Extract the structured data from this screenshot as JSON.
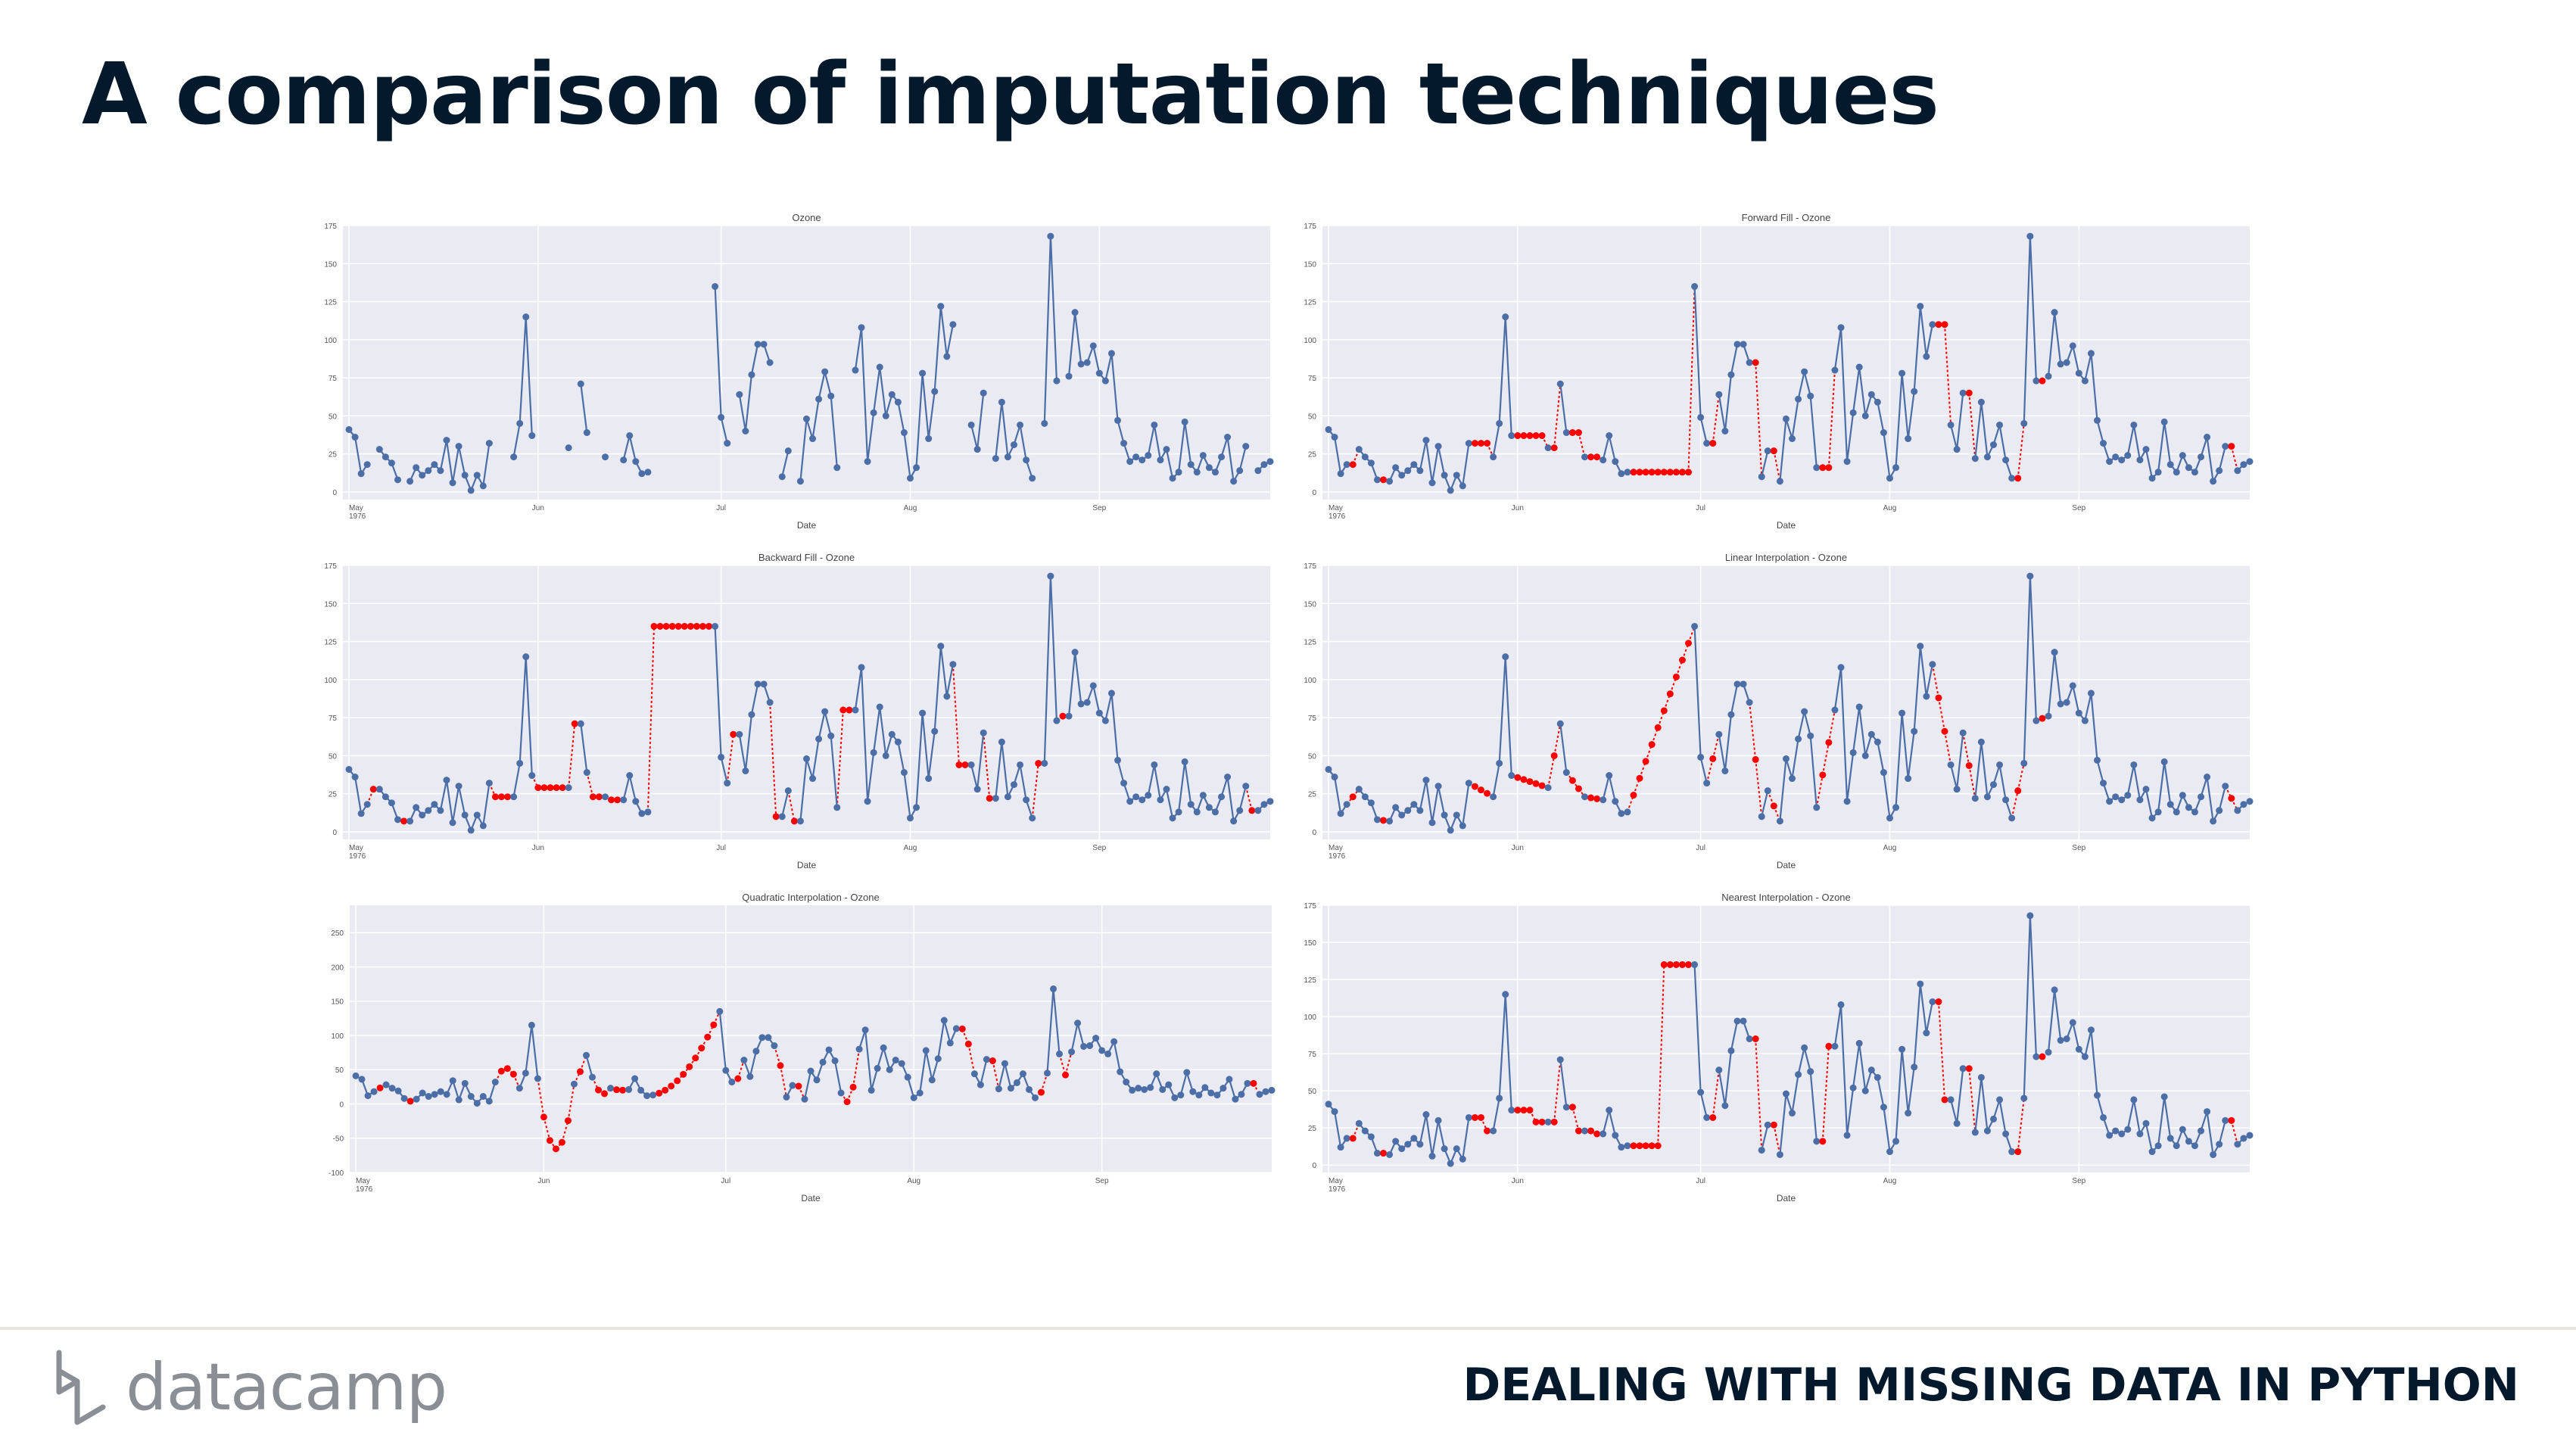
{
  "slide": {
    "title": "A comparison of imputation techniques",
    "course": "DEALING WITH MISSING DATA IN PYTHON",
    "brand": "datacamp"
  },
  "colors": {
    "background": "#ffffff",
    "title": "#05192d",
    "plot_bg": "#eaeaf2",
    "grid": "#ffffff",
    "observed": "#4c6ea6",
    "imputed": "#ff0000",
    "brand_gray": "#8a8f96"
  },
  "chart_data": [
    {
      "type": "line",
      "title": "Ozone",
      "xlabel": "Date",
      "ylabel": "",
      "xlim": [
        "1976-05-01",
        "1976-09-30"
      ],
      "ylim": [
        -5,
        175
      ],
      "yticks": [
        0,
        25,
        50,
        75,
        100,
        125,
        150,
        175
      ],
      "xticks": [
        "May\n1976",
        "Jun",
        "Jul",
        "Aug",
        "Sep"
      ],
      "grid": true,
      "imputed_points": false,
      "series": [
        {
          "values": [
            41,
            36,
            12,
            18,
            null,
            28,
            23,
            19,
            8,
            null,
            7,
            16,
            11,
            14,
            18,
            14,
            34,
            6,
            30,
            11,
            1,
            11,
            4,
            32,
            null,
            null,
            null,
            23,
            45,
            115,
            37,
            null,
            null,
            null,
            null,
            null,
            29,
            null,
            71,
            39,
            null,
            null,
            23,
            null,
            null,
            21,
            37,
            20,
            12,
            13,
            null,
            null,
            null,
            null,
            null,
            null,
            null,
            null,
            null,
            null,
            135,
            49,
            32,
            null,
            64,
            40,
            77,
            97,
            97,
            85,
            null,
            10,
            27,
            null,
            7,
            48,
            35,
            61,
            79,
            63,
            16,
            null,
            null,
            80,
            108,
            20,
            52,
            82,
            50,
            64,
            59,
            39,
            9,
            16,
            78,
            35,
            66,
            122,
            89,
            110,
            null,
            null,
            44,
            28,
            65,
            null,
            22,
            59,
            23,
            31,
            44,
            21,
            9,
            null,
            45,
            168,
            73,
            null,
            76,
            118,
            84,
            85,
            96,
            78,
            73,
            91,
            47,
            32,
            20,
            23,
            21,
            24,
            44,
            21,
            28,
            9,
            13,
            46,
            18,
            13,
            24,
            16,
            13,
            23,
            36,
            7,
            14,
            30,
            null,
            14,
            18,
            20
          ]
        }
      ]
    },
    {
      "type": "line",
      "title": "Forward Fill - Ozone",
      "xlabel": "Date",
      "ylabel": "",
      "xlim": [
        "1976-05-01",
        "1976-09-30"
      ],
      "ylim": [
        -5,
        175
      ],
      "yticks": [
        0,
        25,
        50,
        75,
        100,
        125,
        150,
        175
      ],
      "xticks": [
        "May\n1976",
        "Jun",
        "Jul",
        "Aug",
        "Sep"
      ],
      "grid": true,
      "imputed_points": true,
      "method": "ffill",
      "series": [
        {
          "name": "Ozone",
          "source_chart": 0
        }
      ]
    },
    {
      "type": "line",
      "title": "Backward Fill - Ozone",
      "xlabel": "Date",
      "ylabel": "",
      "xlim": [
        "1976-05-01",
        "1976-09-30"
      ],
      "ylim": [
        -5,
        175
      ],
      "yticks": [
        0,
        25,
        50,
        75,
        100,
        125,
        150,
        175
      ],
      "xticks": [
        "May\n1976",
        "Jun",
        "Jul",
        "Aug",
        "Sep"
      ],
      "grid": true,
      "imputed_points": true,
      "method": "bfill",
      "series": [
        {
          "name": "Ozone",
          "source_chart": 0
        }
      ]
    },
    {
      "type": "line",
      "title": "Linear Interpolation - Ozone",
      "xlabel": "Date",
      "ylabel": "",
      "xlim": [
        "1976-05-01",
        "1976-09-30"
      ],
      "ylim": [
        -5,
        175
      ],
      "yticks": [
        0,
        25,
        50,
        75,
        100,
        125,
        150,
        175
      ],
      "xticks": [
        "May\n1976",
        "Jun",
        "Jul",
        "Aug",
        "Sep"
      ],
      "grid": true,
      "imputed_points": true,
      "method": "linear",
      "series": [
        {
          "name": "Ozone",
          "source_chart": 0
        }
      ]
    },
    {
      "type": "line",
      "title": "Quadratic Interpolation - Ozone",
      "xlabel": "Date",
      "ylabel": "",
      "xlim": [
        "1976-05-01",
        "1976-09-30"
      ],
      "ylim": [
        -100,
        290
      ],
      "yticks": [
        -100,
        -50,
        0,
        50,
        100,
        150,
        200,
        250
      ],
      "xticks": [
        "May\n1976",
        "Jun",
        "Jul",
        "Aug",
        "Sep"
      ],
      "grid": true,
      "imputed_points": true,
      "method": "quadratic",
      "series": [
        {
          "name": "Ozone",
          "source_chart": 0
        }
      ]
    },
    {
      "type": "line",
      "title": "Nearest Interpolation - Ozone",
      "xlabel": "Date",
      "ylabel": "",
      "xlim": [
        "1976-05-01",
        "1976-09-30"
      ],
      "ylim": [
        -5,
        175
      ],
      "yticks": [
        0,
        25,
        50,
        75,
        100,
        125,
        150,
        175
      ],
      "xticks": [
        "May\n1976",
        "Jun",
        "Jul",
        "Aug",
        "Sep"
      ],
      "grid": true,
      "imputed_points": true,
      "method": "nearest",
      "series": [
        {
          "name": "Ozone",
          "source_chart": 0
        }
      ]
    }
  ]
}
